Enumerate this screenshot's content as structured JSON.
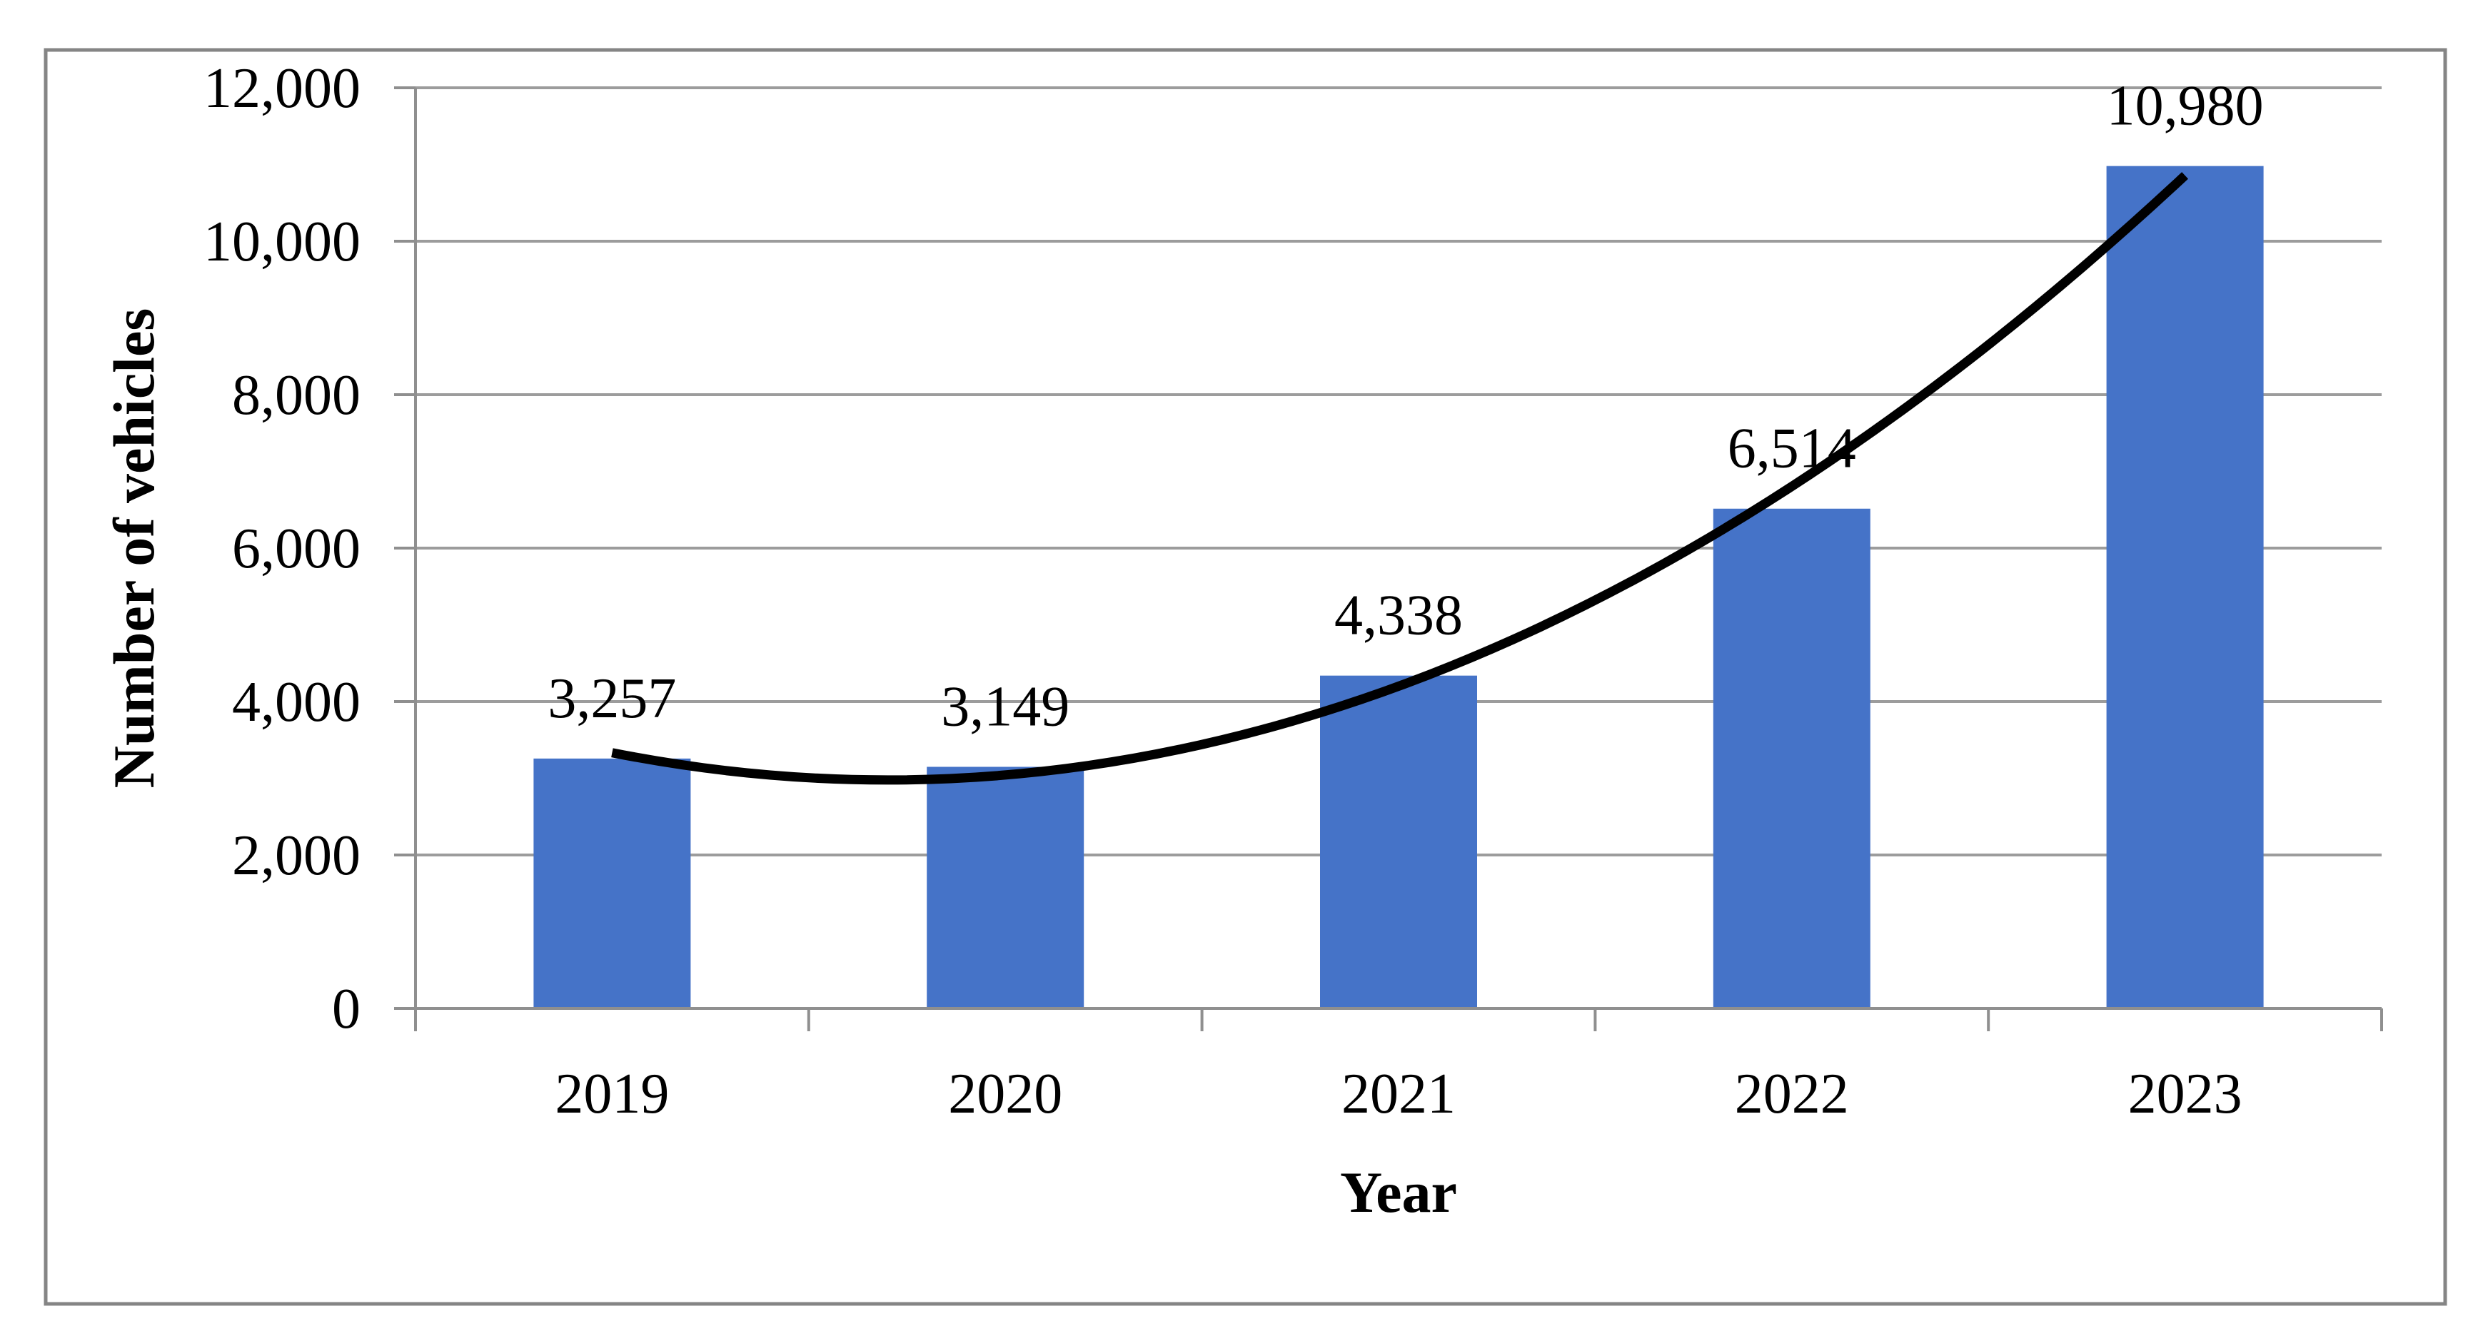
{
  "chart_data": {
    "type": "bar",
    "title": "",
    "xlabel": "Year",
    "ylabel": "Number of vehicles",
    "categories": [
      "2019",
      "2020",
      "2021",
      "2022",
      "2023"
    ],
    "values": [
      3257,
      3149,
      4338,
      6514,
      10980
    ],
    "data_labels": [
      "3,257",
      "3,149",
      "4,338",
      "6,514",
      "10,980"
    ],
    "ylim": [
      0,
      12000
    ],
    "ytick_step": 2000,
    "ytick_labels": [
      "0",
      "2,000",
      "4,000",
      "6,000",
      "8,000",
      "10,000",
      "12,000"
    ],
    "grid": true,
    "legend": "none",
    "bar_color": "#4573C8",
    "gridline_color": "#9C9C9C",
    "axis_color": "#8F8F8F",
    "frame_color": "#858585",
    "label_color": "#000000",
    "trendline": {
      "type": "polynomial",
      "order": 2,
      "coefficients": {
        "a": 723.9,
        "b": -1014.6,
        "c": 3333.2
      },
      "color": "#000000"
    }
  }
}
